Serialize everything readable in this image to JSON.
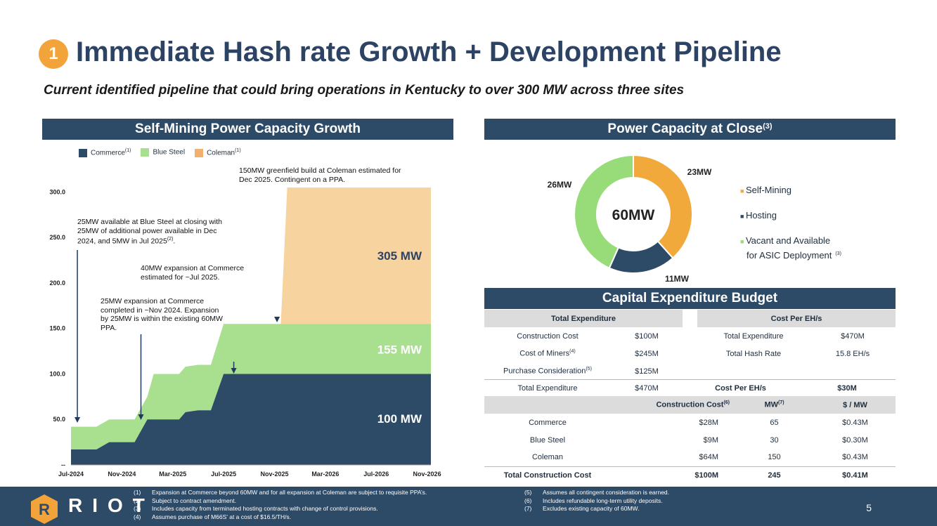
{
  "header": {
    "badge": "1",
    "title": "Immediate Hash rate Growth + Development Pipeline",
    "subtitle": "Current identified pipeline that could bring operations in Kentucky to over 300 MW across three sites"
  },
  "left_panel": {
    "title": "Self-Mining Power Capacity Growth",
    "legend": [
      {
        "name": "Commerce",
        "sup": "(1)",
        "color": "#2d4a66"
      },
      {
        "name": "Blue Steel",
        "sup": "",
        "color": "#a8e090"
      },
      {
        "name": "Coleman",
        "sup": "(1)",
        "color": "#f7d3a0"
      }
    ],
    "annotations": {
      "a1": "25MW available at Blue Steel at closing with 25MW of additional power available in Dec 2024, and 5MW in Jul 2025",
      "a1_sup": "(2)",
      "a2": "25MW expansion at Commerce completed in ~Nov 2024. Expansion by 25MW is within the existing 60MW PPA.",
      "a3": "40MW expansion at Commerce estimated for ~Jul 2025.",
      "a4": "150MW greenfield build at Coleman estimated for Dec 2025. Contingent on a PPA."
    },
    "labels": {
      "coleman": "305 MW",
      "bluesteel": "155 MW",
      "commerce": "100 MW"
    }
  },
  "chart_data": {
    "type": "area",
    "title": "Self-Mining Power Capacity Growth",
    "x_tick_labels": [
      "Jul-2024",
      "Nov-2024",
      "Mar-2025",
      "Jul-2025",
      "Nov-2025",
      "Mar-2026",
      "Jul-2026",
      "Nov-2026"
    ],
    "y_tick_labels": [
      "--",
      "50.0",
      "100.0",
      "150.0",
      "200.0",
      "250.0",
      "300.0"
    ],
    "ylim": [
      0,
      305
    ],
    "x_months": [
      0,
      2,
      3,
      5,
      6,
      6.5,
      7,
      8.5,
      9,
      10,
      11,
      12,
      13,
      14,
      16,
      16.5,
      17,
      28.3
    ],
    "series": [
      {
        "name": "Commerce",
        "values": [
          17,
          17,
          25,
          25,
          50,
          50,
          50,
          50,
          58,
          60,
          60,
          100,
          100,
          100,
          100,
          100,
          100,
          100
        ]
      },
      {
        "name": "Blue Steel",
        "values": [
          25,
          25,
          25,
          25,
          25,
          50,
          50,
          50,
          50,
          50,
          50,
          55,
          55,
          55,
          55,
          55,
          55,
          55
        ]
      },
      {
        "name": "Coleman",
        "values": [
          0,
          0,
          0,
          0,
          0,
          0,
          0,
          0,
          0,
          0,
          0,
          0,
          0,
          0,
          0,
          0,
          150,
          150
        ]
      }
    ],
    "arrows_at_month": [
      0.5,
      5.5,
      12.8,
      16.2
    ]
  },
  "donut": {
    "title": "Power Capacity at Close",
    "title_sup": "(3)",
    "center": "60MW",
    "chart_data": {
      "type": "pie",
      "slices": [
        {
          "label": "23MW",
          "name": "Self-Mining",
          "value": 23,
          "color": "#f2a93c"
        },
        {
          "label": "11MW",
          "name": "Hosting",
          "value": 11,
          "color": "#2d4a66"
        },
        {
          "label": "26MW",
          "name": "Vacant and Available for ASIC Deployment",
          "value": 26,
          "color": "#97dc78"
        }
      ]
    },
    "legend": [
      "Self-Mining",
      "Hosting",
      "Vacant and Available",
      "for ASIC Deployment"
    ],
    "legend_sup": "(3)"
  },
  "capex": {
    "title": "Capital Expenditure Budget",
    "left_header": "Total Expenditure",
    "right_header": "Cost Per EH/s",
    "left_rows": [
      {
        "label": "Construction Cost",
        "sup": "",
        "value": "$100M"
      },
      {
        "label": "Cost of Miners",
        "sup": "(4)",
        "value": "$245M"
      },
      {
        "label": "Purchase Consideration",
        "sup": "(5)",
        "value": "$125M"
      }
    ],
    "right_rows": [
      {
        "label": "Total Expenditure",
        "value": "$470M"
      },
      {
        "label": "Total Hash Rate",
        "value": "15.8 EH/s"
      }
    ],
    "summary": {
      "label1": "Total Expenditure",
      "value1": "$470M",
      "label2": "Cost Per EH/s",
      "value2": "$30M"
    },
    "table_headers": {
      "c2": "Construction Cost",
      "c2_sup": "(6)",
      "c3": "MW",
      "c3_sup": "(7)",
      "c4": "$ / MW"
    },
    "rows": [
      {
        "site": "Commerce",
        "cost": "$28M",
        "mw": "65",
        "per": "$0.43M"
      },
      {
        "site": "Blue Steel",
        "cost": "$9M",
        "mw": "30",
        "per": "$0.30M"
      },
      {
        "site": "Coleman",
        "cost": "$64M",
        "mw": "150",
        "per": "$0.43M"
      }
    ],
    "total": {
      "site": "Total Construction Cost",
      "cost": "$100M",
      "mw": "245",
      "per": "$0.41M"
    }
  },
  "footer": {
    "logo": "RIOT",
    "page": "5",
    "notes_left": [
      {
        "n": "(1)",
        "t": "Expansion at Commerce beyond 60MW and for all expansion at Coleman are subject to requisite PPA’s."
      },
      {
        "n": "(2)",
        "t": "Subject to contract amendment."
      },
      {
        "n": "(3)",
        "t": "Includes capacity from terminated hosting contracts with change of control provisions."
      },
      {
        "n": "(4)",
        "t": "Assumes purchase of M66S’ at a cost of $16.5/TH/s."
      }
    ],
    "notes_right": [
      {
        "n": "(5)",
        "t": "Assumes all contingent consideration is earned."
      },
      {
        "n": "(6)",
        "t": "Includes refundable long-term utility deposits."
      },
      {
        "n": "(7)",
        "t": "Excludes existing capacity of 60MW."
      }
    ]
  }
}
